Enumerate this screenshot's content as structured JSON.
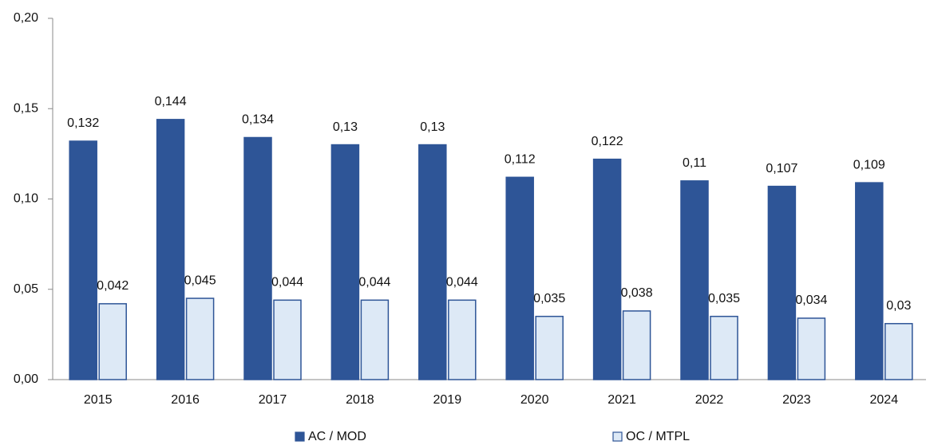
{
  "chart_data": {
    "type": "bar",
    "categories": [
      "2015",
      "2016",
      "2017",
      "2018",
      "2019",
      "2020",
      "2021",
      "2022",
      "2023",
      "2024"
    ],
    "series": [
      {
        "name": "AC / MOD",
        "color": "#2e5597",
        "values": [
          0.132,
          0.144,
          0.134,
          0.13,
          0.13,
          0.112,
          0.122,
          0.11,
          0.107,
          0.109
        ],
        "value_labels": [
          "0,132",
          "0,144",
          "0,134",
          "0,13",
          "0,13",
          "0,112",
          "0,122",
          "0,11",
          "0,107",
          "0,109"
        ]
      },
      {
        "name": "OC / MTPL",
        "color": "#dde9f6",
        "values": [
          0.042,
          0.045,
          0.044,
          0.044,
          0.044,
          0.035,
          0.038,
          0.035,
          0.034,
          0.031
        ],
        "value_labels": [
          "0,042",
          "0,045",
          "0,044",
          "0,044",
          "0,044",
          "0,035",
          "0,038",
          "0,035",
          "0,034",
          "0,03"
        ]
      }
    ],
    "ylim": [
      0,
      0.2
    ],
    "yticks": [
      {
        "value": 0,
        "label": "0,00"
      },
      {
        "value": 0.05,
        "label": "0,05"
      },
      {
        "value": 0.1,
        "label": "0,10"
      },
      {
        "value": 0.15,
        "label": "0,15"
      },
      {
        "value": 0.2,
        "label": "0,20"
      }
    ],
    "legend": "bottom"
  }
}
